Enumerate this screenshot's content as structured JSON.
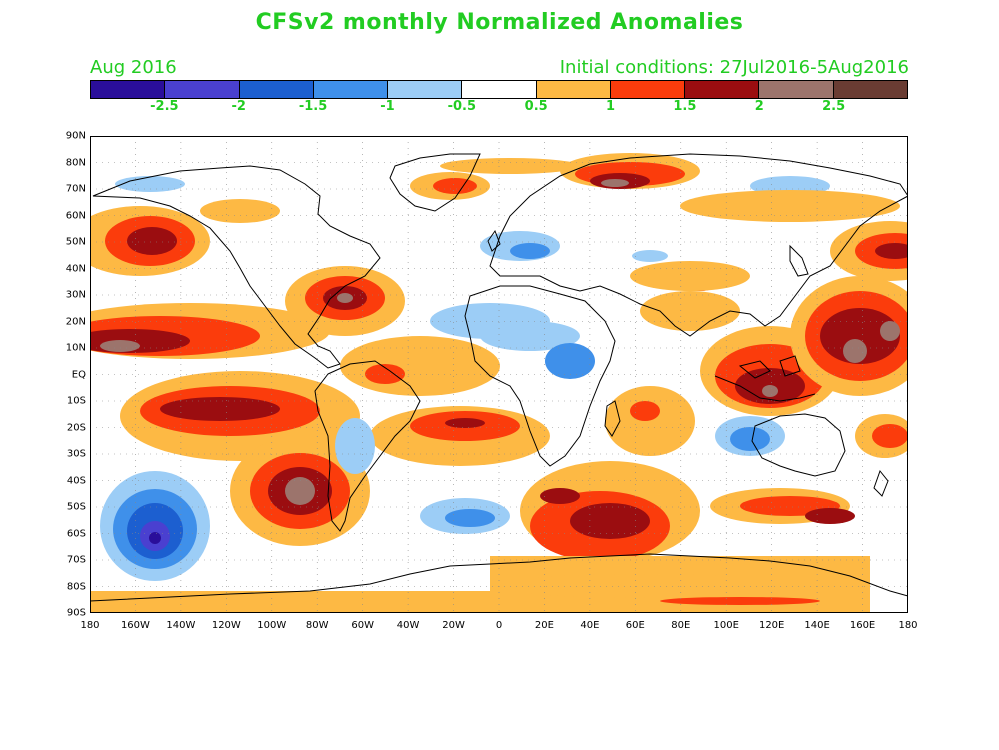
{
  "title": "CFSv2 monthly Normalized Anomalies",
  "valid_month": "Aug 2016",
  "initial_conditions": "Initial conditions: 27Jul2016-5Aug2016",
  "text_color": "#22cc22",
  "colorbar": {
    "colors": [
      "#2a0e9a",
      "#4a40d0",
      "#1c5fd0",
      "#3f90ea",
      "#9ccdf6",
      "#ffffff",
      "#fdb944",
      "#fb3c0c",
      "#9b0d10",
      "#9c746c",
      "#6a3c33"
    ],
    "tick_labels": [
      "-2.5",
      "-2",
      "-1.5",
      "-1",
      "-0.5",
      "0.5",
      "1",
      "1.5",
      "2",
      "2.5"
    ]
  },
  "latitude_labels": [
    "90N",
    "80N",
    "70N",
    "60N",
    "50N",
    "40N",
    "30N",
    "20N",
    "10N",
    "EQ",
    "10S",
    "20S",
    "30S",
    "40S",
    "50S",
    "60S",
    "70S",
    "80S",
    "90S"
  ],
  "longitude_labels": [
    "180",
    "160W",
    "140W",
    "120W",
    "100W",
    "80W",
    "60W",
    "40W",
    "20W",
    "0",
    "20E",
    "40E",
    "60E",
    "80E",
    "100E",
    "120E",
    "140E",
    "160E",
    "180"
  ]
}
